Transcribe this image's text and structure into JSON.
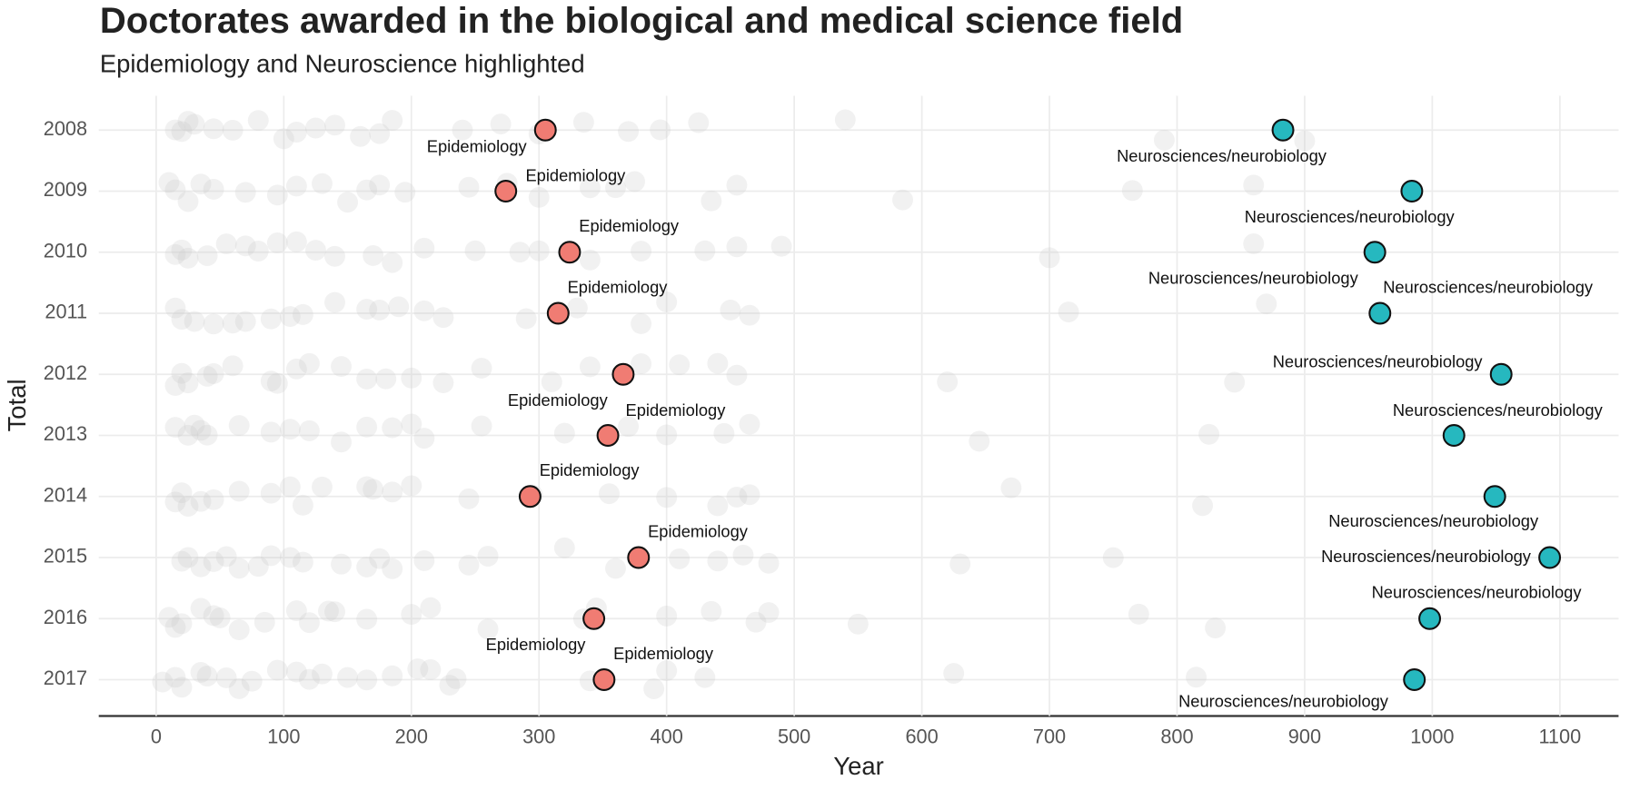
{
  "chart_data": {
    "type": "strip",
    "title": "Doctorates awarded in the biological and medical science field",
    "subtitle": "Epidemiology and Neuroscience highlighted",
    "x_label": "Year",
    "y_label": "Total",
    "categories": [
      "2008",
      "2009",
      "2010",
      "2011",
      "2012",
      "2013",
      "2014",
      "2015",
      "2016",
      "2017"
    ],
    "xlim": [
      -45,
      1146
    ],
    "xticks": [
      0,
      100,
      200,
      300,
      400,
      500,
      600,
      700,
      800,
      900,
      1000,
      1100
    ],
    "grid": true,
    "series": [
      {
        "name": "Epidemiology",
        "color": "#f07c73",
        "values": [
          305,
          274,
          324,
          315,
          366,
          354,
          293,
          378,
          343,
          351
        ],
        "point_labels": [
          "Epidemiology",
          "Epidemiology",
          "Epidemiology",
          "Epidemiology",
          "Epidemiology",
          "Epidemiology",
          "Epidemiology",
          "Epidemiology",
          "Epidemiology",
          "Epidemiology"
        ]
      },
      {
        "name": "Neurosciences/neurobiology",
        "color": "#26b8bf",
        "values": [
          883,
          984,
          955,
          959,
          1054,
          1017,
          1049,
          1092,
          998,
          986
        ],
        "point_labels": [
          "Neurosciences/neurobiology",
          "Neurosciences/neurobiology",
          "Neurosciences/neurobiology",
          "Neurosciences/neurobiology",
          "Neurosciences/neurobiology",
          "Neurosciences/neurobiology",
          "Neurosciences/neurobiology",
          "Neurosciences/neurobiology",
          "Neurosciences/neurobiology",
          "Neurosciences/neurobiology"
        ]
      }
    ],
    "background": {
      "color": "#c8c8c8",
      "values": [
        [
          15,
          20,
          25,
          30,
          45,
          60,
          80,
          100,
          110,
          125,
          140,
          160,
          175,
          185,
          240,
          270,
          300,
          335,
          370,
          395,
          425,
          540,
          790,
          900
        ],
        [
          10,
          15,
          25,
          35,
          45,
          70,
          95,
          110,
          130,
          150,
          165,
          175,
          195,
          245,
          275,
          300,
          340,
          360,
          375,
          435,
          455,
          585,
          765,
          860
        ],
        [
          15,
          20,
          25,
          40,
          55,
          70,
          80,
          95,
          110,
          125,
          140,
          170,
          185,
          210,
          250,
          285,
          300,
          340,
          380,
          430,
          455,
          490,
          700,
          860
        ],
        [
          15,
          20,
          30,
          45,
          60,
          70,
          90,
          105,
          115,
          140,
          165,
          175,
          190,
          210,
          225,
          290,
          330,
          380,
          400,
          450,
          465,
          715,
          870
        ],
        [
          15,
          20,
          25,
          40,
          45,
          60,
          90,
          95,
          110,
          120,
          145,
          165,
          180,
          200,
          225,
          255,
          310,
          340,
          380,
          410,
          440,
          455,
          620,
          845
        ],
        [
          15,
          25,
          30,
          35,
          40,
          65,
          90,
          105,
          120,
          145,
          165,
          185,
          200,
          210,
          255,
          320,
          370,
          400,
          445,
          465,
          645,
          825
        ],
        [
          15,
          20,
          25,
          35,
          45,
          65,
          90,
          105,
          115,
          130,
          165,
          170,
          185,
          200,
          245,
          295,
          355,
          400,
          440,
          455,
          465,
          670,
          820
        ],
        [
          20,
          25,
          35,
          45,
          55,
          65,
          80,
          90,
          105,
          115,
          145,
          165,
          175,
          185,
          210,
          245,
          260,
          320,
          360,
          410,
          440,
          460,
          480,
          630,
          750
        ],
        [
          10,
          15,
          20,
          35,
          45,
          50,
          65,
          85,
          110,
          120,
          135,
          140,
          165,
          200,
          215,
          260,
          335,
          345,
          400,
          435,
          470,
          480,
          550,
          770,
          830
        ],
        [
          5,
          15,
          20,
          35,
          40,
          55,
          65,
          75,
          95,
          110,
          120,
          130,
          150,
          165,
          185,
          205,
          215,
          230,
          235,
          340,
          390,
          400,
          430,
          625,
          815
        ]
      ]
    }
  }
}
